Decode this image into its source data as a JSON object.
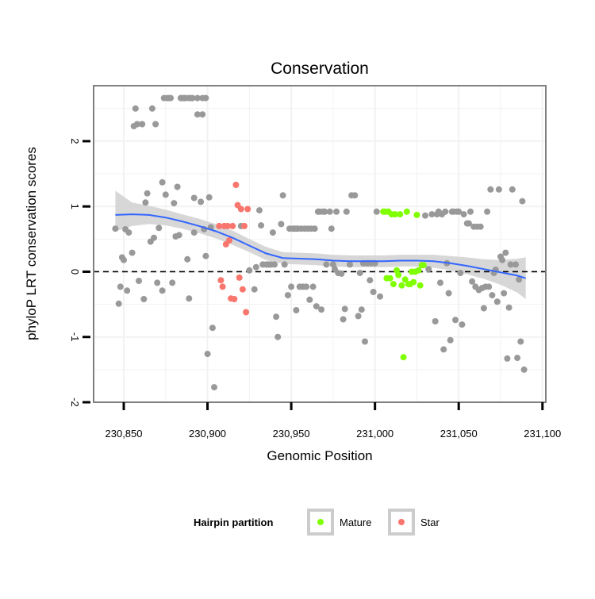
{
  "chart_data": {
    "type": "scatter",
    "title": "Conservation",
    "xlabel": "Genomic Position",
    "ylabel": "phyloP LRT conservation scores",
    "xlim": [
      230832,
      231102
    ],
    "ylim": [
      -2,
      2.85
    ],
    "x_ticks": [
      230850,
      230900,
      230950,
      231000,
      231050,
      231100
    ],
    "x_tick_labels": [
      "230,850",
      "230,900",
      "230,950",
      "231,000",
      "231,050",
      "231,100"
    ],
    "y_ticks": [
      -2,
      -1,
      0,
      1,
      2
    ],
    "y_tick_labels": [
      "-2",
      "-1",
      "0",
      "1",
      "2"
    ],
    "grid": true,
    "reference_line": {
      "y": 0,
      "style": "dashed"
    },
    "colors": {
      "Other": "#999999",
      "Mature": "#80ff00",
      "Star": "#f8766d",
      "smooth": "#3366ff",
      "ribbon": "#d3d3d3",
      "grid": "#f2f2f2",
      "frame": "#7f7f7f"
    },
    "legend": {
      "title": "Hairpin partition",
      "position": "bottom",
      "entries": [
        "Mature",
        "Star"
      ]
    },
    "series": [
      {
        "name": "Other",
        "points": [
          [
            230845,
            0.66
          ],
          [
            230847,
            -0.49
          ],
          [
            230848,
            -0.23
          ],
          [
            230849,
            0.22
          ],
          [
            230850,
            0.18
          ],
          [
            230851,
            0.65
          ],
          [
            230852,
            -0.29
          ],
          [
            230853,
            0.6
          ],
          [
            230855,
            0.29
          ],
          [
            230856,
            2.23
          ],
          [
            230857,
            2.5
          ],
          [
            230858,
            2.26
          ],
          [
            230859,
            -0.14
          ],
          [
            230861,
            2.26
          ],
          [
            230862,
            -0.42
          ],
          [
            230863,
            1.06
          ],
          [
            230864,
            1.2
          ],
          [
            230866,
            0.46
          ],
          [
            230867,
            2.5
          ],
          [
            230868,
            0.52
          ],
          [
            230869,
            2.26
          ],
          [
            230870,
            -0.17
          ],
          [
            230871,
            0.67
          ],
          [
            230873,
            -0.29
          ],
          [
            230873,
            1.37
          ],
          [
            230874,
            2.66
          ],
          [
            230875,
            1.18
          ],
          [
            230876,
            2.66
          ],
          [
            230877,
            2.66
          ],
          [
            230878,
            2.66
          ],
          [
            230879,
            -0.17
          ],
          [
            230880,
            1.05
          ],
          [
            230881,
            0.54
          ],
          [
            230882,
            1.3
          ],
          [
            230883,
            0.56
          ],
          [
            230884,
            2.66
          ],
          [
            230885,
            2.66
          ],
          [
            230886,
            2.66
          ],
          [
            230887,
            2.66
          ],
          [
            230888,
            0.19
          ],
          [
            230889,
            -0.41
          ],
          [
            230889,
            2.66
          ],
          [
            230890,
            2.66
          ],
          [
            230891,
            2.66
          ],
          [
            230892,
            0.6
          ],
          [
            230892,
            1.13
          ],
          [
            230894,
            2.41
          ],
          [
            230894,
            2.66
          ],
          [
            230896,
            1.07
          ],
          [
            230897,
            2.41
          ],
          [
            230897,
            2.66
          ],
          [
            230899,
            2.66
          ],
          [
            230898,
            0.65
          ],
          [
            230899,
            0.24
          ],
          [
            230900,
            -1.26
          ],
          [
            230901,
            1.14
          ],
          [
            230902,
            0.68
          ],
          [
            230903,
            -0.86
          ],
          [
            230904,
            -1.77
          ],
          [
            230920,
            0.7
          ],
          [
            230925,
            0.02
          ],
          [
            230928,
            -0.27
          ],
          [
            230929,
            0.07
          ],
          [
            230931,
            0.94
          ],
          [
            230932,
            0.71
          ],
          [
            230933,
            0.11
          ],
          [
            230935,
            0.11
          ],
          [
            230936,
            0.11
          ],
          [
            230937,
            0.11
          ],
          [
            230938,
            0.11
          ],
          [
            230939,
            0.6
          ],
          [
            230940,
            0.11
          ],
          [
            230941,
            -0.69
          ],
          [
            230942,
            -1.0
          ],
          [
            230944,
            0.73
          ],
          [
            230945,
            1.17
          ],
          [
            230946,
            0.11
          ],
          [
            230948,
            -0.36
          ],
          [
            230949,
            0.66
          ],
          [
            230950,
            -0.23
          ],
          [
            230951,
            0.66
          ],
          [
            230952,
            0.66
          ],
          [
            230953,
            -0.59
          ],
          [
            230953,
            0.66
          ],
          [
            230954,
            0.66
          ],
          [
            230955,
            -0.23
          ],
          [
            230956,
            0.66
          ],
          [
            230957,
            -0.23
          ],
          [
            230958,
            0.66
          ],
          [
            230959,
            -0.23
          ],
          [
            230960,
            0.66
          ],
          [
            230961,
            -0.43
          ],
          [
            230962,
            0.66
          ],
          [
            230963,
            -0.23
          ],
          [
            230964,
            0.66
          ],
          [
            230965,
            -0.53
          ],
          [
            230966,
            0.92
          ],
          [
            230967,
            0.92
          ],
          [
            230968,
            -0.58
          ],
          [
            230969,
            0.92
          ],
          [
            230970,
            0.92
          ],
          [
            230971,
            0.11
          ],
          [
            230973,
            0.92
          ],
          [
            230974,
            0.66
          ],
          [
            230975,
            0.11
          ],
          [
            230976,
            0.04
          ],
          [
            230977,
            0.92
          ],
          [
            230978,
            -0.02
          ],
          [
            230980,
            -0.03
          ],
          [
            230981,
            -0.73
          ],
          [
            230982,
            -0.57
          ],
          [
            230983,
            0.92
          ],
          [
            230985,
            0.11
          ],
          [
            230986,
            1.17
          ],
          [
            230988,
            1.17
          ],
          [
            230990,
            -0.68
          ],
          [
            230991,
            -0.02
          ],
          [
            230992,
            -0.58
          ],
          [
            230993,
            0.13
          ],
          [
            230994,
            -1.07
          ],
          [
            230995,
            0.13
          ],
          [
            230996,
            0.13
          ],
          [
            230997,
            -0.13
          ],
          [
            230998,
            0.13
          ],
          [
            230999,
            -0.31
          ],
          [
            231000,
            0.13
          ],
          [
            231001,
            0.92
          ],
          [
            231003,
            -0.38
          ],
          [
            231030,
            0.86
          ],
          [
            231032,
            0.04
          ],
          [
            231034,
            0.88
          ],
          [
            231036,
            -0.76
          ],
          [
            231037,
            0.88
          ],
          [
            231038,
            0.92
          ],
          [
            231039,
            -0.17
          ],
          [
            231040,
            0.88
          ],
          [
            231041,
            -1.19
          ],
          [
            231042,
            0.92
          ],
          [
            231043,
            0.13
          ],
          [
            231044,
            -0.33
          ],
          [
            231045,
            -1.05
          ],
          [
            231046,
            0.92
          ],
          [
            231047,
            0.92
          ],
          [
            231048,
            -0.74
          ],
          [
            231049,
            0.92
          ],
          [
            231050,
            0.92
          ],
          [
            231051,
            -0.02
          ],
          [
            231052,
            -0.81
          ],
          [
            231053,
            0.88
          ],
          [
            231055,
            0.74
          ],
          [
            231056,
            0.74
          ],
          [
            231057,
            0.92
          ],
          [
            231058,
            -0.15
          ],
          [
            231059,
            0.69
          ],
          [
            231060,
            -0.23
          ],
          [
            231061,
            0.69
          ],
          [
            231062,
            -0.28
          ],
          [
            231063,
            0.69
          ],
          [
            231064,
            -0.25
          ],
          [
            231065,
            -0.56
          ],
          [
            231066,
            -0.23
          ],
          [
            231067,
            0.92
          ],
          [
            231068,
            -0.23
          ],
          [
            231069,
            1.26
          ],
          [
            231070,
            -0.36
          ],
          [
            231071,
            -0.02
          ],
          [
            231072,
            0.03
          ],
          [
            231073,
            -0.46
          ],
          [
            231074,
            1.26
          ],
          [
            231075,
            0.23
          ],
          [
            231076,
            0.18
          ],
          [
            231077,
            -0.33
          ],
          [
            231078,
            0.29
          ],
          [
            231079,
            -1.33
          ],
          [
            231080,
            -0.55
          ],
          [
            231081,
            0.11
          ],
          [
            231082,
            1.26
          ],
          [
            231084,
            0.11
          ],
          [
            231085,
            -1.32
          ],
          [
            231086,
            -0.12
          ],
          [
            231087,
            -1.07
          ],
          [
            231088,
            1.08
          ],
          [
            231089,
            -1.5
          ]
        ]
      },
      {
        "name": "Mature",
        "points": [
          [
            231005,
            0.92
          ],
          [
            231006,
            0.92
          ],
          [
            231007,
            -0.1
          ],
          [
            231008,
            0.92
          ],
          [
            231009,
            -0.1
          ],
          [
            231010,
            0.88
          ],
          [
            231011,
            -0.19
          ],
          [
            231012,
            0.88
          ],
          [
            231013,
            0.02
          ],
          [
            231014,
            -0.05
          ],
          [
            231015,
            0.88
          ],
          [
            231016,
            -0.21
          ],
          [
            231017,
            -1.31
          ],
          [
            231018,
            -0.12
          ],
          [
            231019,
            0.92
          ],
          [
            231020,
            -0.19
          ],
          [
            231021,
            -0.19
          ],
          [
            231022,
            0.0
          ],
          [
            231023,
            -0.16
          ],
          [
            231024,
            0.0
          ],
          [
            231025,
            0.87
          ],
          [
            231026,
            0.02
          ],
          [
            231027,
            -0.21
          ],
          [
            231028,
            0.1
          ],
          [
            231029,
            0.1
          ]
        ]
      },
      {
        "name": "Star",
        "points": [
          [
            230907,
            0.7
          ],
          [
            230908,
            -0.13
          ],
          [
            230909,
            -0.23
          ],
          [
            230910,
            0.7
          ],
          [
            230911,
            0.42
          ],
          [
            230912,
            0.7
          ],
          [
            230913,
            0.48
          ],
          [
            230914,
            -0.41
          ],
          [
            230915,
            0.7
          ],
          [
            230916,
            -0.42
          ],
          [
            230917,
            1.33
          ],
          [
            230918,
            1.02
          ],
          [
            230919,
            -0.09
          ],
          [
            230920,
            0.96
          ],
          [
            230921,
            -0.27
          ],
          [
            230922,
            0.7
          ],
          [
            230923,
            -0.62
          ],
          [
            230924,
            0.96
          ]
        ]
      }
    ],
    "smooth": {
      "method": "loess",
      "x": [
        230845,
        230855,
        230865,
        230875,
        230885,
        230895,
        230905,
        230915,
        230925,
        230935,
        230945,
        230955,
        230965,
        230975,
        230985,
        230995,
        231005,
        231015,
        231025,
        231035,
        231045,
        231055,
        231065,
        231075,
        231085,
        231090
      ],
      "y": [
        0.87,
        0.88,
        0.87,
        0.83,
        0.77,
        0.7,
        0.62,
        0.52,
        0.4,
        0.28,
        0.21,
        0.2,
        0.19,
        0.17,
        0.16,
        0.16,
        0.16,
        0.17,
        0.17,
        0.16,
        0.13,
        0.09,
        0.04,
        -0.01,
        -0.06,
        -0.1
      ],
      "ci_lower": [
        0.62,
        0.7,
        0.73,
        0.71,
        0.66,
        0.59,
        0.51,
        0.41,
        0.3,
        0.18,
        0.12,
        0.11,
        0.1,
        0.08,
        0.07,
        0.07,
        0.07,
        0.08,
        0.08,
        0.06,
        0.02,
        -0.04,
        -0.11,
        -0.2,
        -0.32,
        -0.42
      ],
      "ci_upper": [
        1.24,
        1.06,
        1.01,
        0.95,
        0.88,
        0.81,
        0.73,
        0.63,
        0.5,
        0.38,
        0.3,
        0.29,
        0.28,
        0.26,
        0.25,
        0.25,
        0.25,
        0.26,
        0.26,
        0.26,
        0.24,
        0.22,
        0.19,
        0.18,
        0.2,
        0.22
      ]
    }
  }
}
